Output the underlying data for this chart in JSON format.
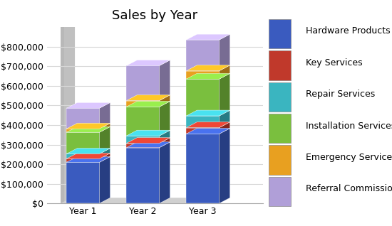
{
  "title": "Sales by Year",
  "categories": [
    "Year 1",
    "Year 2",
    "Year 3"
  ],
  "series": [
    {
      "label": "Hardware Products",
      "values": [
        210000,
        285000,
        355000
      ],
      "color": "#3a5bbf"
    },
    {
      "label": "Key Services",
      "values": [
        18000,
        22000,
        32000
      ],
      "color": "#c0392b"
    },
    {
      "label": "Repair Services",
      "values": [
        25000,
        38000,
        60000
      ],
      "color": "#3ab5c0"
    },
    {
      "label": "Installation Services",
      "values": [
        110000,
        148000,
        188000
      ],
      "color": "#7abf3e"
    },
    {
      "label": "Emergency Services",
      "values": [
        18000,
        32000,
        42000
      ],
      "color": "#e8a020"
    },
    {
      "label": "Referral Commissions",
      "values": [
        105000,
        178000,
        158000
      ],
      "color": "#b09fd8"
    }
  ],
  "ylim": [
    0,
    900000
  ],
  "yticks": [
    0,
    100000,
    200000,
    300000,
    400000,
    500000,
    600000,
    700000,
    800000
  ],
  "background_color": "#ffffff",
  "grid_color": "#d8d8d8",
  "title_fontsize": 13,
  "legend_fontsize": 9,
  "bar_width": 0.55,
  "depth_x": 0.18,
  "depth_y_ratio": 0.032,
  "x_positions": [
    0.6,
    1.6,
    2.6
  ],
  "xlim": [
    0.0,
    3.6
  ],
  "wall_color": "#c0c0c0",
  "floor_color": "#d0d0d0"
}
